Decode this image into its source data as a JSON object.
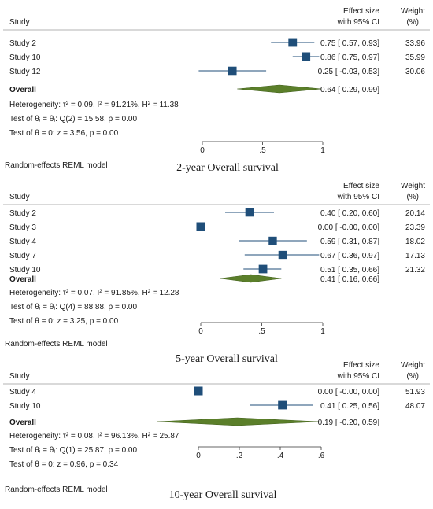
{
  "colors": {
    "study_marker": "#1f4e79",
    "overall_diamond": "#5b7f2a",
    "text": "#1a1a1a"
  },
  "chart_data": [
    {
      "type": "forest",
      "title": "2-year Overall survival",
      "column_headers": {
        "study": "Study",
        "effect": [
          "Effect size",
          "with 95% CI"
        ],
        "weight": [
          "Weight",
          "(%)"
        ]
      },
      "xlim": [
        0,
        1
      ],
      "ticks": [
        {
          "v": 0,
          "label": "0"
        },
        {
          "v": 0.5,
          "label": ".5"
        },
        {
          "v": 1,
          "label": "1"
        }
      ],
      "studies": [
        {
          "name": "Study 2",
          "es": 0.75,
          "lo": 0.57,
          "hi": 0.93,
          "weight": 33.96,
          "es_text": "0.75 [  0.57, 0.93]",
          "weight_text": "33.96"
        },
        {
          "name": "Study 10",
          "es": 0.86,
          "lo": 0.75,
          "hi": 0.97,
          "weight": 35.99,
          "es_text": "0.86 [  0.75, 0.97]",
          "weight_text": "35.99"
        },
        {
          "name": "Study 12",
          "es": 0.25,
          "lo": -0.03,
          "hi": 0.53,
          "weight": 30.06,
          "es_text": "0.25 [ -0.03, 0.53]",
          "weight_text": "30.06"
        }
      ],
      "overall": {
        "label": "Overall",
        "es": 0.64,
        "lo": 0.29,
        "hi": 0.99,
        "es_text": "0.64 [  0.29, 0.99]"
      },
      "stats": [
        "Heterogeneity: τ² = 0.09, I² = 91.21%, H² = 11.38",
        "Test of θᵢ = θⱼ: Q(2) = 15.58, p = 0.00",
        "Test of θ = 0: z = 3.56, p = 0.00"
      ],
      "model": "Random-effects REML model"
    },
    {
      "type": "forest",
      "title": "5-year Overall survival",
      "column_headers": {
        "study": "Study",
        "effect": [
          "Effect size",
          "with 95% CI"
        ],
        "weight": [
          "Weight",
          "(%)"
        ]
      },
      "xlim": [
        0,
        1
      ],
      "ticks": [
        {
          "v": 0,
          "label": "0"
        },
        {
          "v": 0.5,
          "label": ".5"
        },
        {
          "v": 1,
          "label": "1"
        }
      ],
      "studies": [
        {
          "name": "Study 2",
          "es": 0.4,
          "lo": 0.2,
          "hi": 0.6,
          "weight": 20.14,
          "es_text": "0.40 [  0.20, 0.60]",
          "weight_text": "20.14"
        },
        {
          "name": "Study 3",
          "es": 0.0,
          "lo": -0.0,
          "hi": 0.0,
          "weight": 23.39,
          "es_text": "0.00 [ -0.00, 0.00]",
          "weight_text": "23.39"
        },
        {
          "name": "Study 4",
          "es": 0.59,
          "lo": 0.31,
          "hi": 0.87,
          "weight": 18.02,
          "es_text": "0.59 [  0.31, 0.87]",
          "weight_text": "18.02"
        },
        {
          "name": "Study 7",
          "es": 0.67,
          "lo": 0.36,
          "hi": 0.97,
          "weight": 17.13,
          "es_text": "0.67 [  0.36, 0.97]",
          "weight_text": "17.13"
        },
        {
          "name": "Study 10",
          "es": 0.51,
          "lo": 0.35,
          "hi": 0.66,
          "weight": 21.32,
          "es_text": "0.51 [  0.35, 0.66]",
          "weight_text": "21.32"
        }
      ],
      "overall": {
        "label": "Overall",
        "es": 0.41,
        "lo": 0.16,
        "hi": 0.66,
        "es_text": "0.41 [  0.16, 0.66]"
      },
      "stats": [
        "Heterogeneity: τ² = 0.07, I² = 91.85%, H² = 12.28",
        "Test of θᵢ = θⱼ: Q(4) = 88.88, p = 0.00",
        "Test of θ = 0: z = 3.25, p = 0.00"
      ],
      "model": "Random-effects REML model"
    },
    {
      "type": "forest",
      "title": "10-year Overall survival",
      "column_headers": {
        "study": "Study",
        "effect": [
          "Effect size",
          "with 95% CI"
        ],
        "weight": [
          "Weight",
          "(%)"
        ]
      },
      "xlim": [
        0,
        0.6
      ],
      "ticks": [
        {
          "v": 0,
          "label": "0"
        },
        {
          "v": 0.2,
          "label": ".2"
        },
        {
          "v": 0.4,
          "label": ".4"
        },
        {
          "v": 0.6,
          "label": ".6"
        }
      ],
      "studies": [
        {
          "name": "Study 4",
          "es": 0.0,
          "lo": -0.0,
          "hi": 0.0,
          "weight": 51.93,
          "es_text": "0.00 [ -0.00, 0.00]",
          "weight_text": "51.93"
        },
        {
          "name": "Study 10",
          "es": 0.41,
          "lo": 0.25,
          "hi": 0.56,
          "weight": 48.07,
          "es_text": "0.41 [  0.25, 0.56]",
          "weight_text": "48.07"
        }
      ],
      "overall": {
        "label": "Overall",
        "es": 0.19,
        "lo": -0.2,
        "hi": 0.59,
        "es_text": "0.19 [ -0.20, 0.59]"
      },
      "stats": [
        "Heterogeneity: τ² = 0.08, I² = 96.13%, H² = 25.87",
        "Test of θᵢ = θⱼ: Q(1) = 25.87, p = 0.00",
        "Test of θ = 0: z = 0.96, p = 0.34"
      ],
      "model": "Random-effects REML model"
    }
  ]
}
